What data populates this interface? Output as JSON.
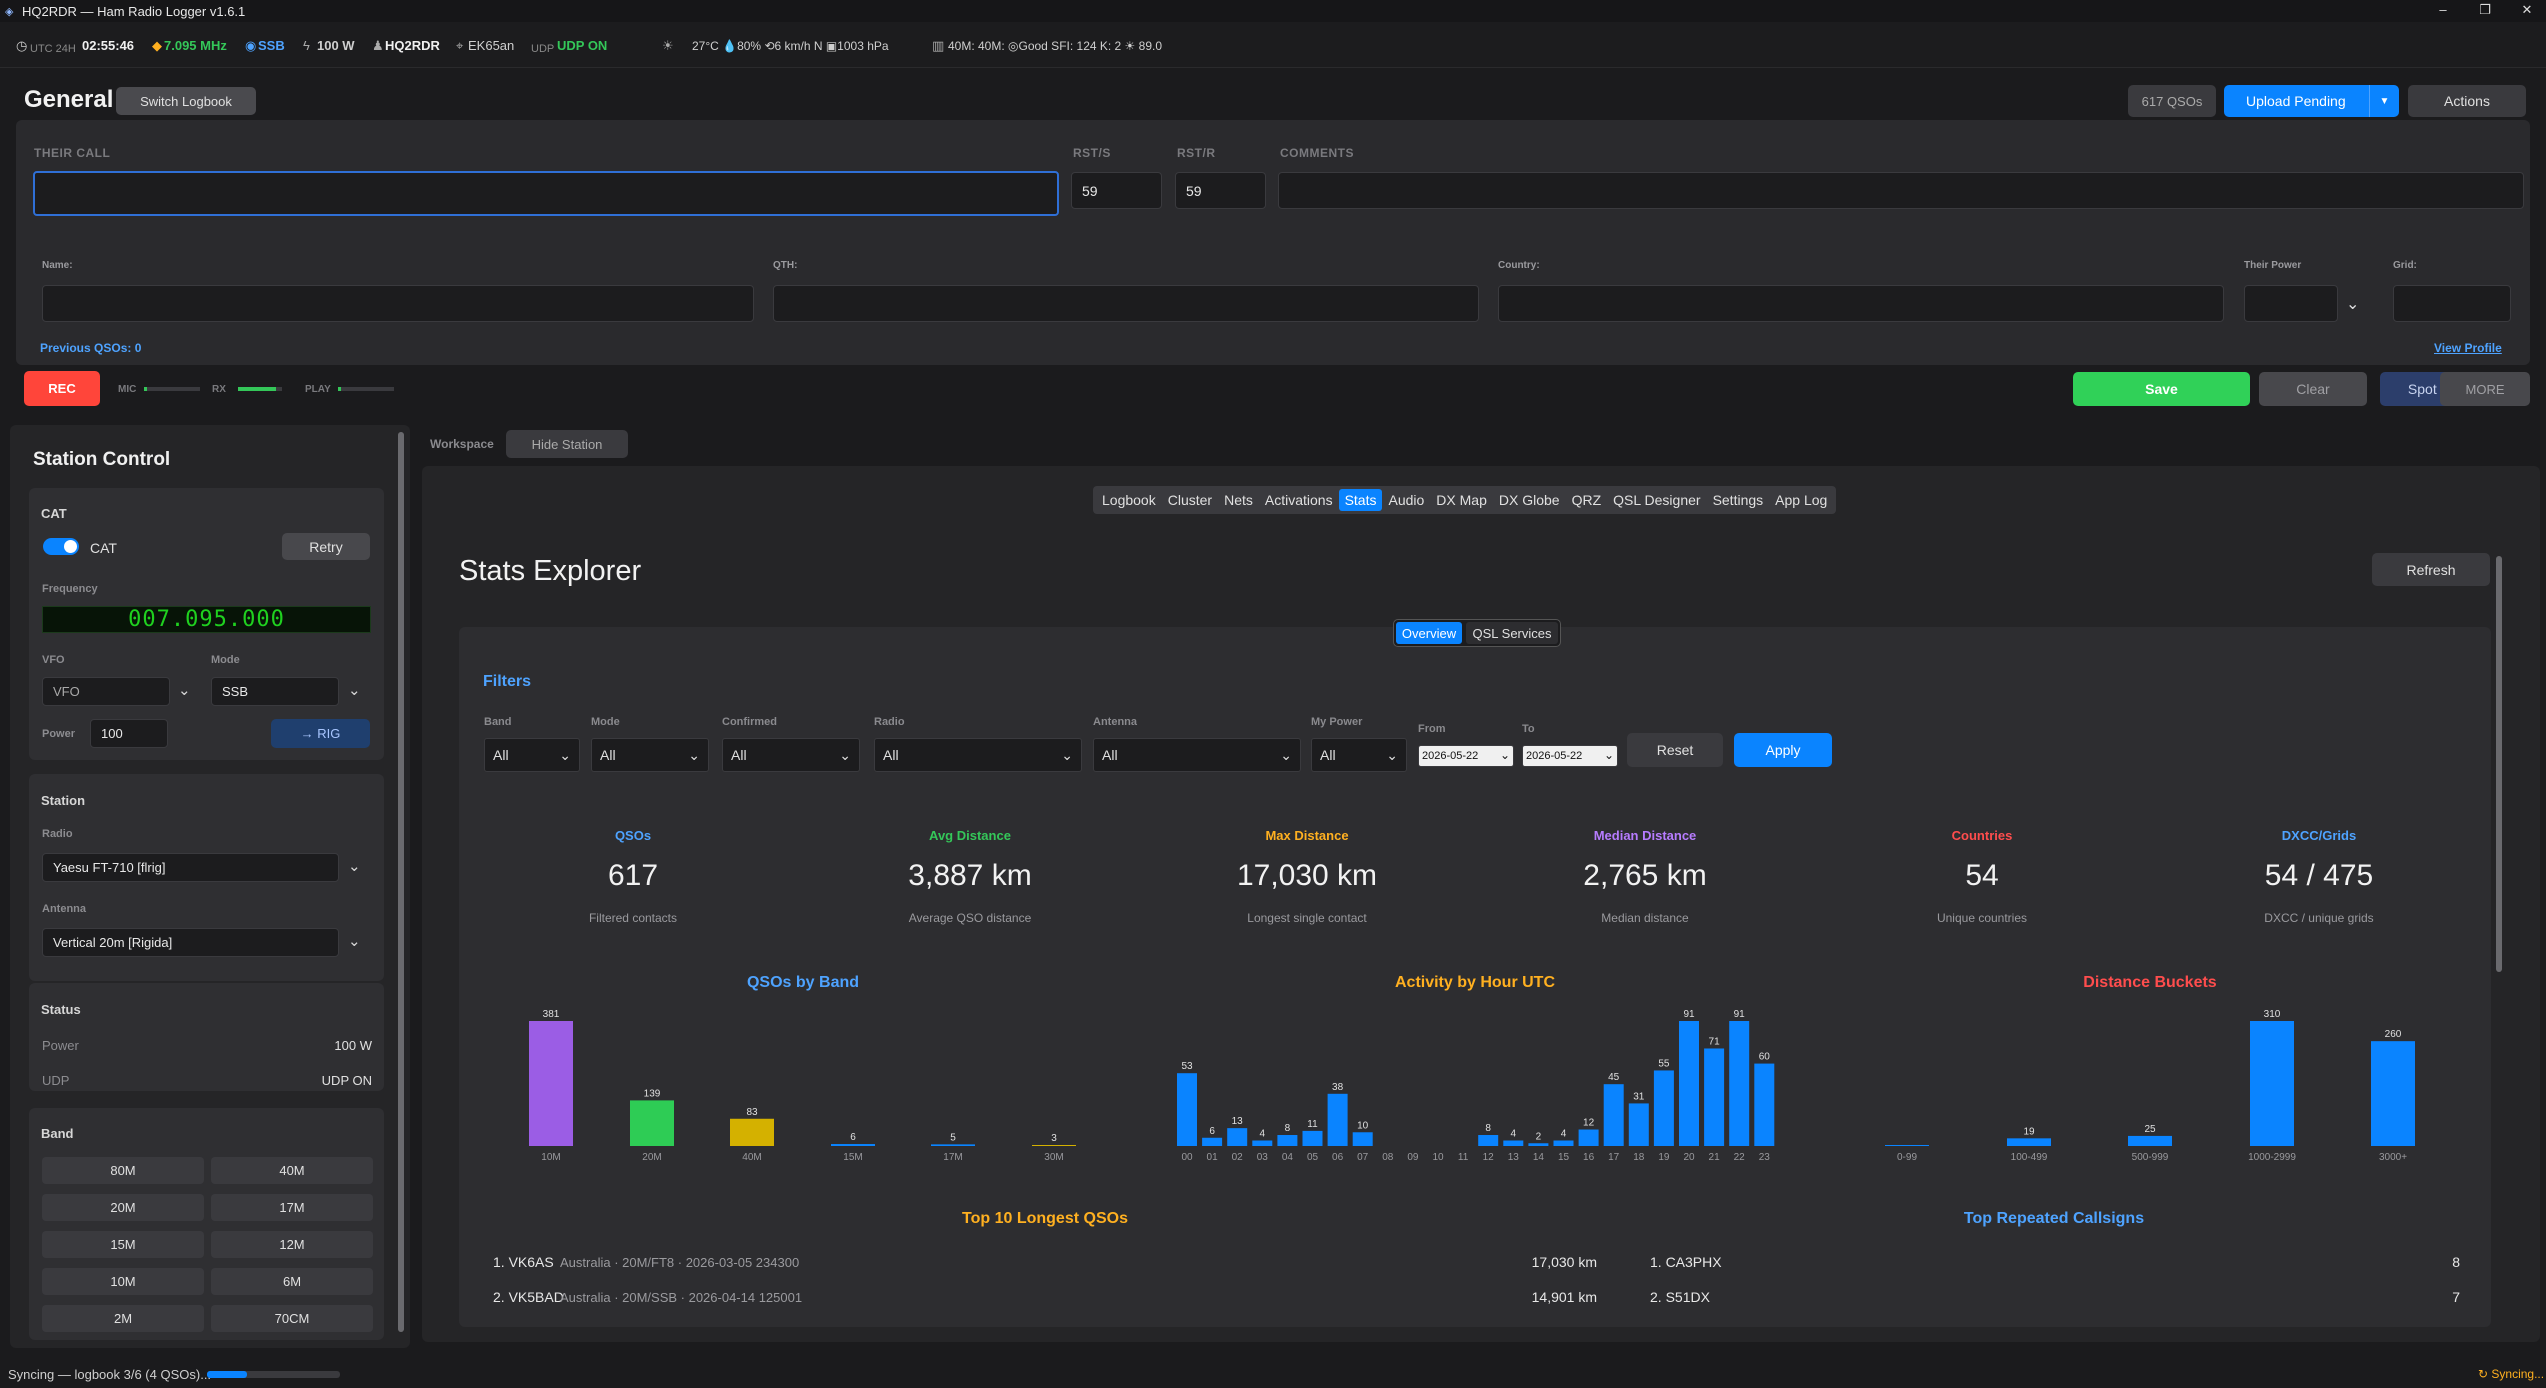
{
  "window": {
    "title": "HQ2RDR — Ham Radio Logger  v1.6.1"
  },
  "status": {
    "clock_label": "UTC 24H",
    "clock": "02:55:46",
    "freq": "7.095 MHz",
    "mode": "SSB",
    "power": "100 W",
    "callsign": "HQ2RDR",
    "grid": "EK65an",
    "udp_label": "UDP",
    "udp": "UDP ON",
    "weather": "27°C  💧80%  ⟲6 km/h N  ▣1003 hPa",
    "propagation": "40M: 40M: ◎Good   SFI: 124   K: 2   ☀ 89.0"
  },
  "header": {
    "title": "General",
    "switch_logbook": "Switch Logbook",
    "qso_count": "617 QSOs",
    "upload_pending": "Upload Pending",
    "actions": "Actions"
  },
  "entry": {
    "their_call_label": "THEIR CALL",
    "rsts_label": "RST/S",
    "rstr_label": "RST/R",
    "comments_label": "COMMENTS",
    "rsts": "59",
    "rstr": "59",
    "name_label": "Name:",
    "qth_label": "QTH:",
    "country_label": "Country:",
    "their_power_label": "Their Power",
    "grid_label": "Grid:",
    "previous_qsos": "Previous QSOs: 0",
    "view_profile": "View Profile",
    "rec": "REC",
    "mic": "MIC",
    "rx": "RX",
    "play": "PLAY",
    "save": "Save",
    "clear": "Clear",
    "spot_dx": "Spot DX",
    "more": "MORE"
  },
  "station": {
    "title": "Station Control",
    "cat_section": "CAT",
    "cat_toggle": "CAT",
    "retry": "Retry",
    "frequency_label": "Frequency",
    "frequency": "007.095.000",
    "vfo_label": "VFO",
    "vfo": "VFO",
    "mode_label": "Mode",
    "mode": "SSB",
    "power_label": "Power",
    "power": "100",
    "to_rig": "→ RIG",
    "station_section": "Station",
    "radio_label": "Radio",
    "radio": "Yaesu FT-710 [flrig]",
    "antenna_label": "Antenna",
    "antenna": "Vertical 20m [Rigida]",
    "status_section": "Status",
    "power_row_label": "Power",
    "power_row": "100 W",
    "udp_row_label": "UDP",
    "udp_row": "UDP ON",
    "band_section": "Band",
    "bands": [
      "80M",
      "40M",
      "20M",
      "17M",
      "15M",
      "12M",
      "10M",
      "6M",
      "2M",
      "70CM"
    ]
  },
  "workspace": {
    "label": "Workspace",
    "hide_station": "Hide Station"
  },
  "tabs": [
    "Logbook",
    "Cluster",
    "Nets",
    "Activations",
    "Stats",
    "Audio",
    "DX Map",
    "DX Globe",
    "QRZ",
    "QSL Designer",
    "Settings",
    "App Log"
  ],
  "stats": {
    "title": "Stats Explorer",
    "refresh": "Refresh",
    "subtab_overview": "Overview",
    "subtab_qsl": "QSL Services",
    "filters_title": "Filters",
    "filters": {
      "band_label": "Band",
      "band": "All",
      "mode_label": "Mode",
      "mode": "All",
      "confirmed_label": "Confirmed",
      "confirmed": "All",
      "radio_label": "Radio",
      "radio": "All",
      "antenna_label": "Antenna",
      "antenna": "All",
      "mypower_label": "My Power",
      "mypower": "All",
      "from_label": "From",
      "from": "2026-05-22",
      "to_label": "To",
      "to": "2026-05-22",
      "reset": "Reset",
      "apply": "Apply"
    },
    "kpis": [
      {
        "title": "QSOs",
        "value": "617",
        "sub": "Filtered contacts",
        "color": "#4ea3ff"
      },
      {
        "title": "Avg Distance",
        "value": "3,887 km",
        "sub": "Average QSO distance",
        "color": "#34c759"
      },
      {
        "title": "Max Distance",
        "value": "17,030 km",
        "sub": "Longest single contact",
        "color": "#ffb020"
      },
      {
        "title": "Median Distance",
        "value": "2,765 km",
        "sub": "Median distance",
        "color": "#b77cff"
      },
      {
        "title": "Countries",
        "value": "54",
        "sub": "Unique countries",
        "color": "#ff4d4d"
      },
      {
        "title": "DXCC/Grids",
        "value": "54 / 475",
        "sub": "DXCC / unique grids",
        "color": "#4ea3ff"
      }
    ],
    "top_longest_title": "Top 10 Longest QSOs",
    "top_longest": [
      {
        "rank": "1. VK6AS",
        "info": "Australia · 20M/FT8 · 2026-03-05 234300",
        "dist": "17,030 km"
      },
      {
        "rank": "2. VK5BAD",
        "info": "Australia · 20M/SSB · 2026-04-14 125001",
        "dist": "14,901 km"
      }
    ],
    "top_repeated_title": "Top Repeated Callsigns",
    "top_repeated": [
      {
        "call": "1. CA3PHX",
        "count": "8"
      },
      {
        "call": "2. S51DX",
        "count": "7"
      }
    ]
  },
  "chart_data": [
    {
      "type": "bar",
      "title": "QSOs by Band",
      "categories": [
        "10M",
        "20M",
        "40M",
        "15M",
        "17M",
        "30M"
      ],
      "values": [
        381,
        139,
        83,
        6,
        5,
        3
      ],
      "colors": [
        "#9b5de5",
        "#2ecc55",
        "#d4b100",
        "#0a84ff",
        "#0a84ff",
        "#d4b100"
      ]
    },
    {
      "type": "bar",
      "title": "Activity by Hour UTC",
      "categories": [
        "00",
        "01",
        "02",
        "03",
        "04",
        "05",
        "06",
        "07",
        "08",
        "09",
        "10",
        "11",
        "12",
        "13",
        "14",
        "15",
        "16",
        "17",
        "18",
        "19",
        "20",
        "21",
        "22",
        "23"
      ],
      "values": [
        53,
        6,
        13,
        4,
        8,
        11,
        38,
        10,
        0,
        0,
        0,
        0,
        8,
        4,
        2,
        4,
        12,
        45,
        31,
        55,
        91,
        71,
        91,
        60
      ]
    },
    {
      "type": "bar",
      "title": "Distance Buckets",
      "categories": [
        "0-99",
        "100-499",
        "500-999",
        "1000-2999",
        "3000+"
      ],
      "values": [
        0,
        19,
        25,
        310,
        260
      ]
    }
  ],
  "footer": {
    "sync_text": "Syncing — logbook 3/6 (4 QSOs)...",
    "sync_progress": 0.3,
    "sync_right": "↻ Syncing..."
  }
}
